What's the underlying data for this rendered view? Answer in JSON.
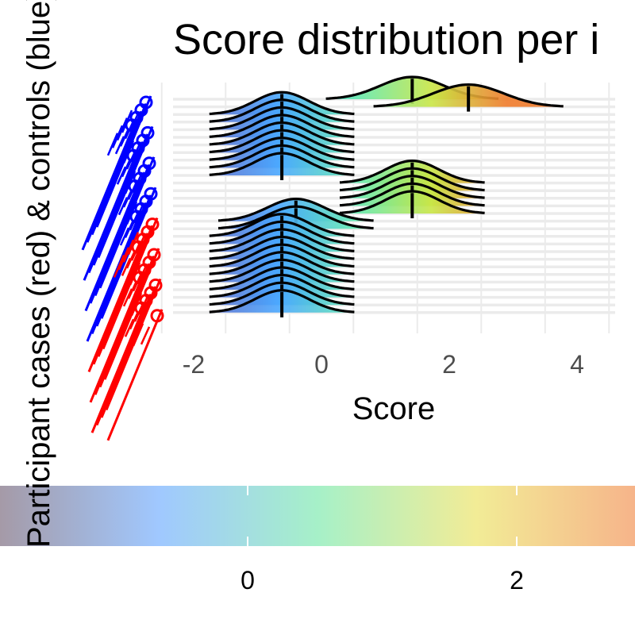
{
  "chart_data": {
    "type": "ridgeline",
    "title": "Score distribution per i",
    "xlabel": "Score",
    "ylabel": "Participant cases (red) & controls (blue)",
    "xlim": [
      -2.2,
      4.6
    ],
    "x_ticks": [
      -2,
      0,
      2,
      4
    ],
    "grid": true,
    "color_scale": {
      "name": "rainbow",
      "ticks": [
        0,
        2
      ],
      "range": [
        -1.85,
        2.9
      ],
      "colors": [
        "#a59aa7",
        "#a0c8ff",
        "#a6f0c8",
        "#f2ec96",
        "#f6b48a"
      ]
    },
    "ridge_groups": [
      {
        "group": "control",
        "rows": 1,
        "mean": 1.42,
        "sd": 0.5
      },
      {
        "group": "control",
        "rows": 1,
        "mean": 2.3,
        "sd": 0.55
      },
      {
        "group": "control",
        "rows": 1,
        "mean": -0.62,
        "sd": 0.42
      },
      {
        "group": "control",
        "rows": 8,
        "mean": -0.62,
        "sd": 0.42
      },
      {
        "group": "control",
        "rows": 5,
        "mean": 1.42,
        "sd": 0.42
      },
      {
        "group": "case",
        "rows": 2,
        "mean": -0.4,
        "sd": 0.45
      },
      {
        "group": "case",
        "rows": 11,
        "mean": -0.62,
        "sd": 0.42
      }
    ],
    "series": [
      {
        "name": "cases",
        "color": "#ff0000"
      },
      {
        "name": "controls",
        "color": "#0000ff"
      }
    ]
  }
}
